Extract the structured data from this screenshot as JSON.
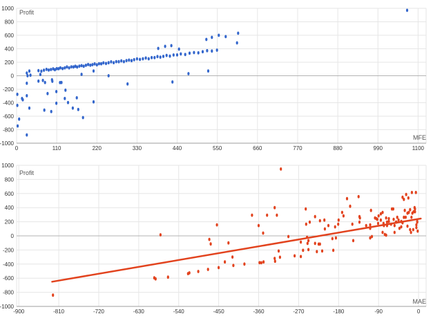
{
  "page": {
    "background": "#ffffff"
  },
  "colors": {
    "grid": "#e6e6e6",
    "zero_line": "#b3b3b3",
    "axis_line": "#9e9e9e",
    "tick_text": "#333333",
    "axis_title_text": "#555555",
    "series_blue": "#3366cc",
    "series_red": "#e2431e"
  },
  "chart_data": [
    {
      "type": "scatter",
      "title": "",
      "xlabel": "MFE",
      "ylabel": "Profit",
      "x_range": [
        0,
        1122
      ],
      "y_range": [
        -1000,
        1000
      ],
      "x_ticks": [
        0,
        110,
        220,
        330,
        440,
        550,
        660,
        770,
        880,
        990,
        1100
      ],
      "y_ticks": [
        1000,
        800,
        600,
        400,
        200,
        0,
        -200,
        -400,
        -600,
        -800,
        -1000
      ],
      "grid": true,
      "legend": "none",
      "point_color": "#3366cc",
      "points": [
        [
          60,
          76
        ],
        [
          68,
          68
        ],
        [
          75,
          82
        ],
        [
          82,
          94
        ],
        [
          88,
          84
        ],
        [
          94,
          92
        ],
        [
          100,
          103
        ],
        [
          105,
          89
        ],
        [
          110,
          105
        ],
        [
          115,
          104
        ],
        [
          120,
          117
        ],
        [
          126,
          107
        ],
        [
          132,
          117
        ],
        [
          138,
          130
        ],
        [
          144,
          117
        ],
        [
          150,
          132
        ],
        [
          156,
          130
        ],
        [
          161,
          140
        ],
        [
          166,
          129
        ],
        [
          172,
          143
        ],
        [
          178,
          150
        ],
        [
          184,
          141
        ],
        [
          190,
          155
        ],
        [
          196,
          166
        ],
        [
          202,
          156
        ],
        [
          208,
          164
        ],
        [
          214,
          175
        ],
        [
          220,
          162
        ],
        [
          226,
          178
        ],
        [
          232,
          177
        ],
        [
          238,
          191
        ],
        [
          245,
          182
        ],
        [
          252,
          193
        ],
        [
          259,
          206
        ],
        [
          266,
          194
        ],
        [
          273,
          209
        ],
        [
          280,
          208
        ],
        [
          287,
          220
        ],
        [
          294,
          209
        ],
        [
          301,
          225
        ],
        [
          308,
          232
        ],
        [
          315,
          224
        ],
        [
          322,
          238
        ],
        [
          330,
          250
        ],
        [
          338,
          242
        ],
        [
          346,
          251
        ],
        [
          354,
          263
        ],
        [
          362,
          251
        ],
        [
          370,
          269
        ],
        [
          378,
          269
        ],
        [
          386,
          284
        ],
        [
          394,
          276
        ],
        [
          402,
          287
        ],
        [
          411,
          302
        ],
        [
          420,
          291
        ],
        [
          430,
          308
        ],
        [
          440,
          309
        ],
        [
          450,
          323
        ],
        [
          462,
          315
        ],
        [
          474,
          334
        ],
        [
          486,
          344
        ],
        [
          498,
          339
        ],
        [
          510,
          356
        ],
        [
          522,
          371
        ],
        [
          535,
          366
        ],
        [
          549,
          379
        ],
        [
          388,
          405
        ],
        [
          407,
          436
        ],
        [
          424,
          446
        ],
        [
          445,
          395
        ],
        [
          520,
          538
        ],
        [
          535,
          569
        ],
        [
          554,
          600
        ],
        [
          573,
          580
        ],
        [
          604,
          487
        ],
        [
          607,
          631
        ],
        [
          1070,
          970
        ],
        [
          28,
          40
        ],
        [
          35,
          70
        ],
        [
          30,
          0
        ],
        [
          38,
          8
        ],
        [
          60,
          -80
        ],
        [
          65,
          18
        ],
        [
          72,
          -70
        ],
        [
          78,
          -100
        ],
        [
          97,
          -60
        ],
        [
          123,
          -100
        ],
        [
          28,
          -112
        ],
        [
          2,
          -276
        ],
        [
          28,
          -296
        ],
        [
          15,
          -337
        ],
        [
          17,
          -357
        ],
        [
          2,
          -440
        ],
        [
          35,
          -480
        ],
        [
          7,
          -643
        ],
        [
          3,
          -745
        ],
        [
          28,
          -878
        ],
        [
          98,
          -82
        ],
        [
          119,
          -102
        ],
        [
          85,
          -265
        ],
        [
          109,
          -235
        ],
        [
          109,
          -408
        ],
        [
          95,
          -531
        ],
        [
          76,
          -510
        ],
        [
          134,
          -214
        ],
        [
          132,
          -337
        ],
        [
          141,
          -398
        ],
        [
          165,
          -327
        ],
        [
          154,
          -480
        ],
        [
          169,
          -500
        ],
        [
          182,
          -620
        ],
        [
          178,
          20
        ],
        [
          211,
          71
        ],
        [
          252,
          0
        ],
        [
          304,
          -122
        ],
        [
          211,
          -388
        ],
        [
          427,
          -92
        ],
        [
          471,
          31
        ],
        [
          525,
          71
        ]
      ]
    },
    {
      "type": "scatter",
      "title": "",
      "xlabel": "MAE",
      "ylabel": "Profit",
      "x_range": [
        -905,
        17
      ],
      "y_range": [
        -1000,
        1000
      ],
      "x_ticks": [
        -900,
        -810,
        -720,
        -630,
        -540,
        -450,
        -360,
        -270,
        -180,
        -90,
        0
      ],
      "y_ticks": [
        1000,
        800,
        600,
        400,
        200,
        0,
        -200,
        -400,
        -600,
        -800,
        -1000
      ],
      "grid": true,
      "legend": "none",
      "point_color": "#e2431e",
      "trend_line": {
        "from": [
          -825,
          -650
        ],
        "to": [
          5,
          245
        ],
        "color": "#e2431e",
        "width": 2.5
      },
      "points": [
        [
          -823,
          -840
        ],
        [
          -595,
          -595
        ],
        [
          -592,
          -610
        ],
        [
          -581,
          15
        ],
        [
          -564,
          -585
        ],
        [
          -519,
          -535
        ],
        [
          -516,
          -525
        ],
        [
          -496,
          -505
        ],
        [
          -474,
          -475
        ],
        [
          -471,
          -50
        ],
        [
          -468,
          -115
        ],
        [
          -454,
          156
        ],
        [
          -450,
          -450
        ],
        [
          -436,
          -370
        ],
        [
          -428,
          -100
        ],
        [
          -419,
          -300
        ],
        [
          -417,
          -420
        ],
        [
          -392,
          -400
        ],
        [
          -375,
          293
        ],
        [
          -360,
          146
        ],
        [
          -358,
          -380
        ],
        [
          -354,
          -381
        ],
        [
          -350,
          39
        ],
        [
          -349,
          -370
        ],
        [
          -341,
          293
        ],
        [
          -324,
          400
        ],
        [
          -324,
          -320
        ],
        [
          -323,
          -360
        ],
        [
          -319,
          293
        ],
        [
          -315,
          -215
        ],
        [
          -312,
          -303
        ],
        [
          -310,
          947
        ],
        [
          -293,
          -10
        ],
        [
          -279,
          -283
        ],
        [
          -265,
          -88
        ],
        [
          -265,
          -293
        ],
        [
          -260,
          -205
        ],
        [
          -254,
          381
        ],
        [
          -253,
          166
        ],
        [
          -251,
          -20
        ],
        [
          -250,
          -107
        ],
        [
          -248,
          -68
        ],
        [
          -248,
          -195
        ],
        [
          -245,
          195
        ],
        [
          -233,
          273
        ],
        [
          -233,
          -107
        ],
        [
          -229,
          -224
        ],
        [
          -225,
          -117
        ],
        [
          -222,
          215
        ],
        [
          -222,
          -117
        ],
        [
          -217,
          -215
        ],
        [
          -212,
          224
        ],
        [
          -211,
          98
        ],
        [
          -203,
          146
        ],
        [
          -194,
          -39
        ],
        [
          -192,
          -205
        ],
        [
          -188,
          127
        ],
        [
          -186,
          -29
        ],
        [
          -181,
          166
        ],
        [
          -180,
          224
        ],
        [
          -172,
          332
        ],
        [
          -169,
          283
        ],
        [
          -161,
          527
        ],
        [
          -154,
          420
        ],
        [
          -149,
          166
        ],
        [
          -147,
          -68
        ],
        [
          -135,
          556
        ],
        [
          -133,
          273
        ],
        [
          -133,
          195
        ],
        [
          -132,
          254
        ],
        [
          -118,
          146
        ],
        [
          -109,
          156
        ],
        [
          -109,
          107
        ],
        [
          -109,
          -29
        ],
        [
          -107,
          361
        ],
        [
          -105,
          -10
        ],
        [
          -98,
          254
        ],
        [
          -95,
          244
        ],
        [
          -93,
          234
        ],
        [
          -91,
          176
        ],
        [
          -90,
          283
        ],
        [
          -85,
          312
        ],
        [
          -85,
          224
        ],
        [
          -81,
          332
        ],
        [
          -81,
          49
        ],
        [
          -79,
          176
        ],
        [
          -78,
          146
        ],
        [
          -76,
          20
        ],
        [
          -73,
          254
        ],
        [
          -73,
          10
        ],
        [
          -71,
          195
        ],
        [
          -71,
          146
        ],
        [
          -67,
          244
        ],
        [
          -67,
          205
        ],
        [
          -62,
          166
        ],
        [
          -60,
          381
        ],
        [
          -57,
          381
        ],
        [
          -56,
          234
        ],
        [
          -54,
          146
        ],
        [
          -54,
          49
        ],
        [
          -51,
          195
        ],
        [
          -50,
          195
        ],
        [
          -48,
          263
        ],
        [
          -45,
          224
        ],
        [
          -43,
          107
        ],
        [
          -39,
          205
        ],
        [
          -39,
          127
        ],
        [
          -36,
          547
        ],
        [
          -36,
          185
        ],
        [
          -33,
          517
        ],
        [
          -33,
          263
        ],
        [
          -31,
          361
        ],
        [
          -29,
          264
        ],
        [
          -28,
          586
        ],
        [
          -25,
          322
        ],
        [
          -25,
          137
        ],
        [
          -23,
          537
        ],
        [
          -22,
          332
        ],
        [
          -19,
          371
        ],
        [
          -19,
          88
        ],
        [
          -17,
          49
        ],
        [
          -16,
          264
        ],
        [
          -15,
          615
        ],
        [
          -14,
          322
        ],
        [
          -12,
          88
        ],
        [
          -11,
          342
        ],
        [
          -9,
          400
        ],
        [
          -8,
          381
        ],
        [
          -8,
          342
        ],
        [
          -6,
          615
        ],
        [
          -5,
          156
        ],
        [
          -5,
          117
        ],
        [
          -3,
          205
        ],
        [
          -3,
          195
        ],
        [
          -2,
          68
        ]
      ]
    }
  ]
}
